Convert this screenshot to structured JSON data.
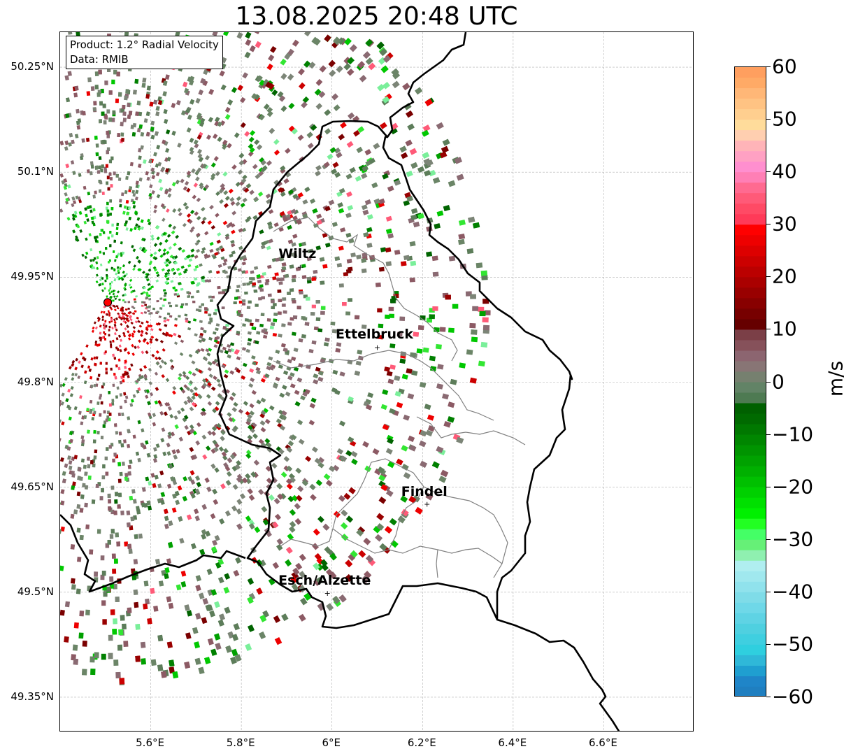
{
  "title": "13.08.2025 20:48 UTC",
  "info_box": {
    "product": "Product: 1.2° Radial Velocity",
    "source": "Data: RMIB"
  },
  "lat_ticks": [
    "50.25°N",
    "50.1°N",
    "49.95°N",
    "49.8°N",
    "49.65°N",
    "49.5°N",
    "49.35°N"
  ],
  "lon_ticks": [
    "5.6°E",
    "5.8°E",
    "6°E",
    "6.2°E",
    "6.4°E",
    "6.6°E"
  ],
  "cities": [
    {
      "name": "Wiltz",
      "lon": 5.93,
      "lat": 49.965
    },
    {
      "name": "Ettelbruck",
      "lon": 6.1,
      "lat": 49.85
    },
    {
      "name": "Findel",
      "lon": 6.21,
      "lat": 49.626
    },
    {
      "name": "Esch/Alzette",
      "lon": 5.99,
      "lat": 49.499
    }
  ],
  "radar_site": {
    "lon": 5.505,
    "lat": 49.914,
    "color": "#ff0000"
  },
  "map_extent": {
    "lon_min": 5.4,
    "lon_max": 6.8,
    "lat_min": 49.3,
    "lat_max": 50.3
  },
  "colorbar": {
    "label": "m/s",
    "min": -60,
    "max": 60,
    "ticks": [
      "60",
      "50",
      "40",
      "30",
      "20",
      "10",
      "0",
      "−10",
      "−20",
      "−30",
      "−40",
      "−50",
      "−60"
    ],
    "colors_top_to_bottom": [
      "#ff9f5f",
      "#ffaa66",
      "#ffb777",
      "#ffc383",
      "#ffcf8f",
      "#ffdc9b",
      "#ffcfb0",
      "#ffb4b8",
      "#ffa1c3",
      "#ff8fcf",
      "#ff7fb5",
      "#ff6a90",
      "#ff5a78",
      "#ff4a65",
      "#ff3a58",
      "#ff0000",
      "#ee0000",
      "#dd0000",
      "#cc0000",
      "#bb0000",
      "#aa0000",
      "#990000",
      "#880000",
      "#770000",
      "#660000",
      "#7b3f47",
      "#86515a",
      "#8c6570",
      "#887575",
      "#76806f",
      "#628366",
      "#4e7a52",
      "#006000",
      "#006a00",
      "#007800",
      "#008600",
      "#009400",
      "#00a200",
      "#00b000",
      "#00c000",
      "#00d000",
      "#00e000",
      "#00f000",
      "#22ff22",
      "#44ff66",
      "#66f077",
      "#8ff0b0",
      "#b0eef0",
      "#a0e8ee",
      "#90e2ec",
      "#7fdce8",
      "#6fd8e8",
      "#5fd3e4",
      "#4fd0e0",
      "#3fcfe0",
      "#2fcfdf",
      "#2fb8d8",
      "#1f9fd0",
      "#1f85c8",
      "#1f7fc0"
    ]
  },
  "velocity_palette": {
    "inbound_green": [
      "#006400",
      "#008000",
      "#00a000",
      "#00c800",
      "#32e632",
      "#7aef9a"
    ],
    "near_zero": [
      "#5d7d5a",
      "#6b8567",
      "#7c8577",
      "#8a6a72",
      "#8c5a64"
    ],
    "outbound_red": [
      "#7a0000",
      "#990000",
      "#cc0000",
      "#ee0000",
      "#ff5a78"
    ]
  }
}
